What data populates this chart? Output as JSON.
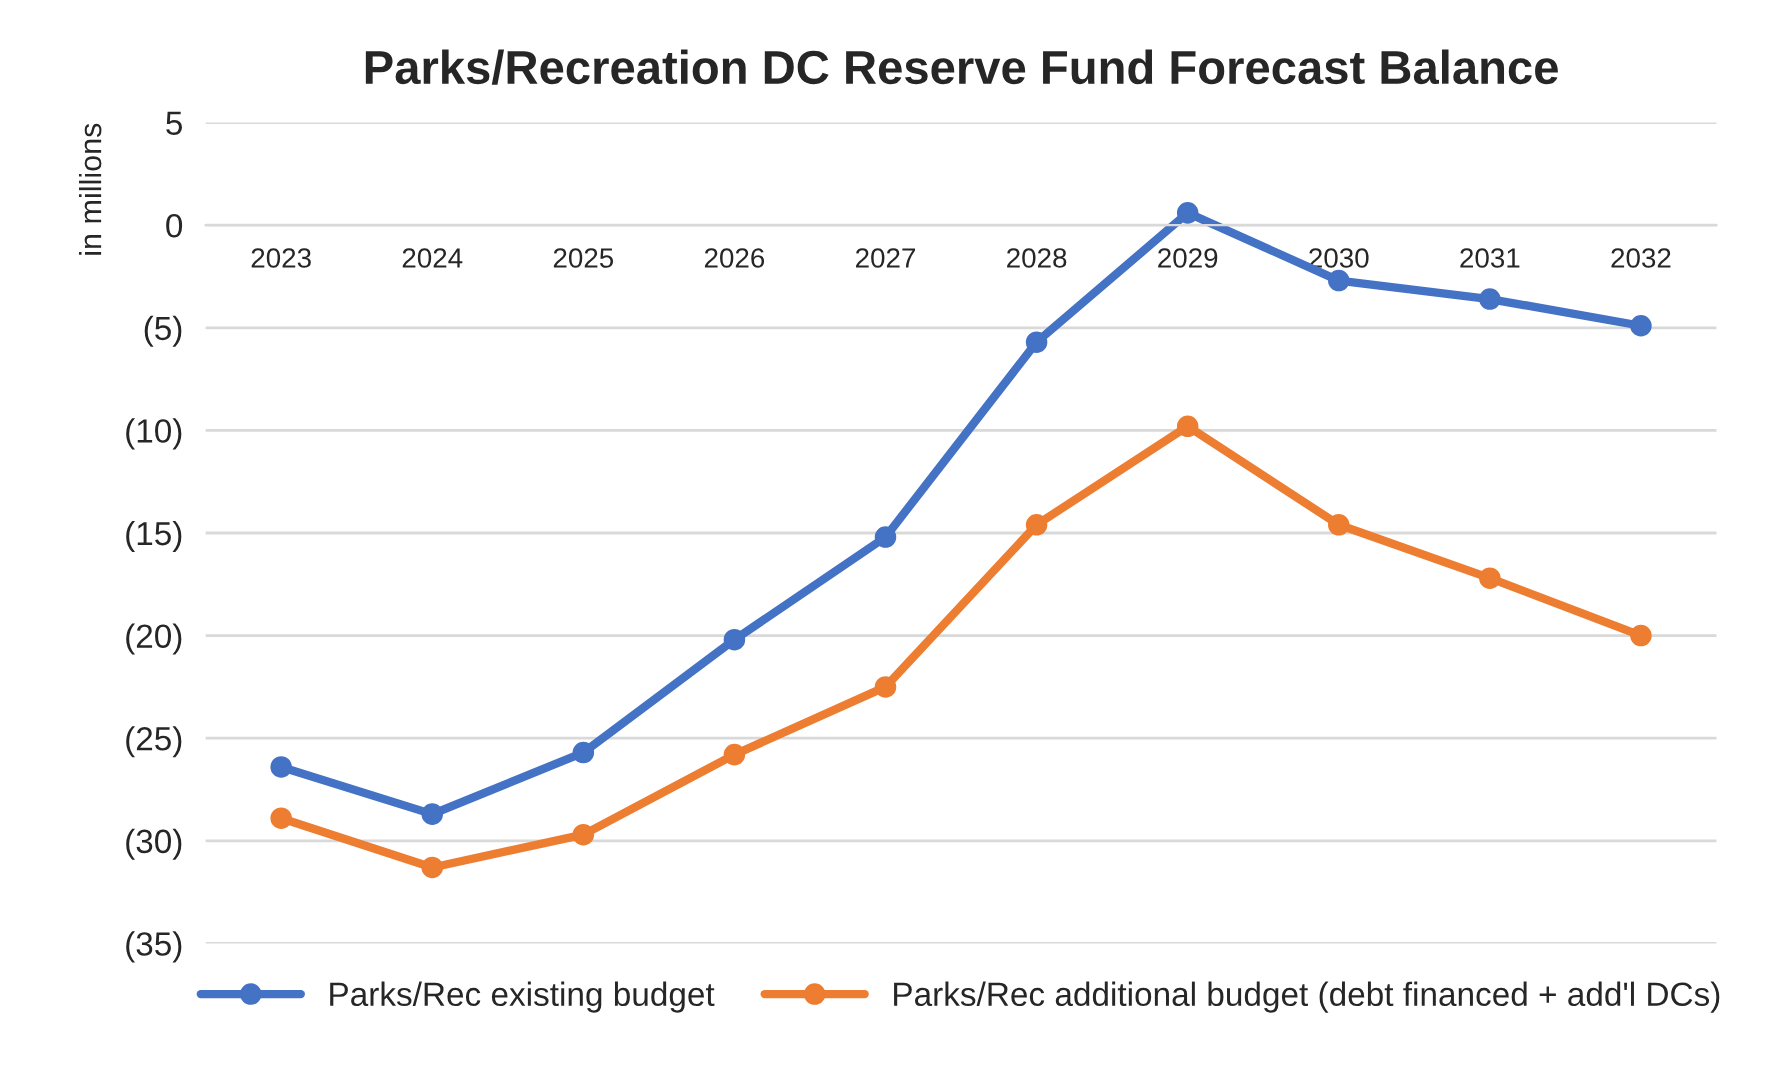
{
  "chart_data": {
    "type": "line",
    "title": "Parks/Recreation DC Reserve Fund Forecast Balance",
    "ylabel": "in millions",
    "categories": [
      "2023",
      "2024",
      "2025",
      "2026",
      "2027",
      "2028",
      "2029",
      "2030",
      "2031",
      "2032"
    ],
    "series": [
      {
        "name": "Parks/Rec existing budget",
        "color": "#4472c4",
        "values": [
          -26.4,
          -28.7,
          -25.7,
          -20.2,
          -15.2,
          -5.7,
          0.6,
          -2.7,
          -3.6,
          -4.9
        ]
      },
      {
        "name": "Parks/Rec additional budget (debt financed + add'l DCs)",
        "color": "#ed7d31",
        "values": [
          -28.9,
          -31.3,
          -29.7,
          -25.8,
          -22.5,
          -14.6,
          -9.8,
          -14.6,
          -17.2,
          -20.0
        ]
      }
    ],
    "ylim": [
      -35,
      5
    ],
    "yticks": [
      5,
      {
        "value": 0,
        "label": "0"
      },
      {
        "value": -5,
        "label": "(5)"
      },
      {
        "value": -10,
        "label": "(10)"
      },
      {
        "value": -15,
        "label": "(15)"
      },
      {
        "value": -20,
        "label": "(20)"
      },
      {
        "value": -25,
        "label": "(25)"
      },
      {
        "value": -30,
        "label": "(30)"
      },
      {
        "value": -35,
        "label": "(35)"
      }
    ],
    "grid": "y",
    "legend": "bottom",
    "marker": "circle",
    "line_style": "solid"
  }
}
